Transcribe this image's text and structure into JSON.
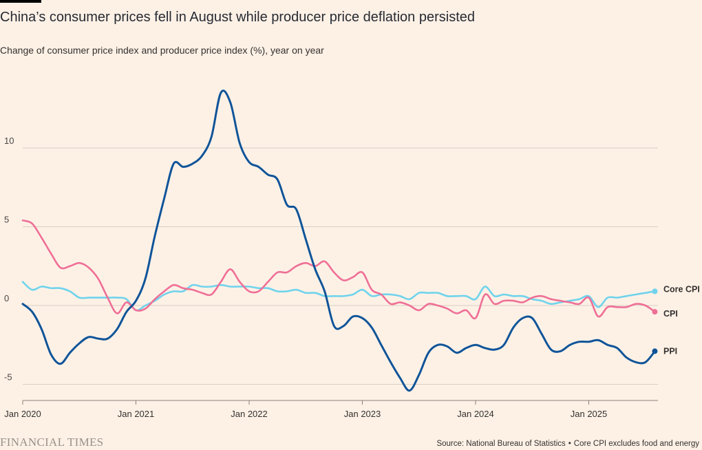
{
  "header": {
    "title": "China’s consumer prices fell in August while producer price deflation persisted",
    "subtitle": "Change of consumer price index and producer price index (%), year on year"
  },
  "footer": {
    "logo": "FINANCIAL TIMES",
    "source": "Source: National Bureau of Statistics",
    "separator": "•",
    "note": "Core CPI excludes food and energy"
  },
  "colors": {
    "background": "#fdf1e6",
    "grid": "#d8cdc3",
    "axis": "#8a8078",
    "ppi": "#0f5499",
    "cpi": "#ef6f96",
    "core_cpi": "#6fd3ec"
  },
  "chart_data": {
    "type": "line",
    "title": "China’s consumer prices fell in August while producer price deflation persisted",
    "subtitle": "Change of consumer price index and producer price index (%), year on year",
    "xlabel": "",
    "ylabel": "",
    "xlim": [
      "2020-01",
      "2025-08"
    ],
    "ylim": [
      -6,
      14
    ],
    "yticks": [
      -5,
      0,
      5,
      10
    ],
    "ytick_labels": [
      "-5",
      "0",
      "5",
      "10"
    ],
    "xtick_labels": [
      "Jan 2020",
      "Jan 2021",
      "Jan 2022",
      "Jan 2023",
      "Jan 2024",
      "Jan 2025"
    ],
    "grid": true,
    "legend": "direct labels at line ends (right)",
    "x": [
      "2020-01",
      "2020-02",
      "2020-03",
      "2020-04",
      "2020-05",
      "2020-06",
      "2020-07",
      "2020-08",
      "2020-09",
      "2020-10",
      "2020-11",
      "2020-12",
      "2021-01",
      "2021-02",
      "2021-03",
      "2021-04",
      "2021-05",
      "2021-06",
      "2021-07",
      "2021-08",
      "2021-09",
      "2021-10",
      "2021-11",
      "2021-12",
      "2022-01",
      "2022-02",
      "2022-03",
      "2022-04",
      "2022-05",
      "2022-06",
      "2022-07",
      "2022-08",
      "2022-09",
      "2022-10",
      "2022-11",
      "2022-12",
      "2023-01",
      "2023-02",
      "2023-03",
      "2023-04",
      "2023-05",
      "2023-06",
      "2023-07",
      "2023-08",
      "2023-09",
      "2023-10",
      "2023-11",
      "2023-12",
      "2024-01",
      "2024-02",
      "2024-03",
      "2024-04",
      "2024-05",
      "2024-06",
      "2024-07",
      "2024-08",
      "2024-09",
      "2024-10",
      "2024-11",
      "2024-12",
      "2025-01",
      "2025-02",
      "2025-03",
      "2025-04",
      "2025-05",
      "2025-06",
      "2025-07",
      "2025-08"
    ],
    "series": [
      {
        "name": "PPI",
        "color": "#0f5499",
        "values": [
          0.1,
          -0.4,
          -1.5,
          -3.1,
          -3.7,
          -3.0,
          -2.4,
          -2.0,
          -2.1,
          -2.1,
          -1.5,
          -0.4,
          0.3,
          1.7,
          4.4,
          6.8,
          9.0,
          8.8,
          9.0,
          9.5,
          10.7,
          13.5,
          12.9,
          10.3,
          9.1,
          8.8,
          8.3,
          8.0,
          6.4,
          6.1,
          4.2,
          2.3,
          0.9,
          -1.3,
          -1.3,
          -0.7,
          -0.8,
          -1.4,
          -2.5,
          -3.6,
          -4.6,
          -5.4,
          -4.4,
          -3.0,
          -2.5,
          -2.6,
          -3.0,
          -2.7,
          -2.5,
          -2.7,
          -2.8,
          -2.5,
          -1.4,
          -0.8,
          -0.8,
          -1.8,
          -2.8,
          -2.9,
          -2.5,
          -2.3,
          -2.3,
          -2.2,
          -2.5,
          -2.7,
          -3.3,
          -3.6,
          -3.6,
          -2.9
        ]
      },
      {
        "name": "CPI",
        "color": "#ef6f96",
        "values": [
          5.4,
          5.2,
          4.3,
          3.3,
          2.4,
          2.5,
          2.7,
          2.4,
          1.7,
          0.5,
          -0.5,
          0.2,
          -0.3,
          -0.2,
          0.4,
          0.9,
          1.3,
          1.1,
          1.0,
          0.8,
          0.7,
          1.5,
          2.3,
          1.5,
          0.9,
          0.9,
          1.5,
          2.1,
          2.1,
          2.5,
          2.7,
          2.5,
          2.8,
          2.1,
          1.6,
          1.8,
          2.1,
          1.0,
          0.7,
          0.1,
          0.2,
          0.0,
          -0.3,
          0.1,
          0.0,
          -0.2,
          -0.5,
          -0.3,
          -0.8,
          0.7,
          0.1,
          0.3,
          0.3,
          0.2,
          0.5,
          0.6,
          0.4,
          0.3,
          0.2,
          0.1,
          0.5,
          -0.7,
          -0.1,
          -0.1,
          -0.1,
          0.1,
          0.0,
          -0.4
        ]
      },
      {
        "name": "Core CPI",
        "color": "#6fd3ec",
        "values": [
          1.5,
          1.0,
          1.2,
          1.1,
          1.1,
          0.9,
          0.5,
          0.5,
          0.5,
          0.5,
          0.5,
          0.4,
          -0.3,
          0.0,
          0.3,
          0.7,
          0.9,
          0.9,
          1.3,
          1.2,
          1.2,
          1.3,
          1.2,
          1.2,
          1.2,
          1.1,
          1.1,
          0.9,
          0.9,
          1.0,
          0.8,
          0.8,
          0.6,
          0.6,
          0.6,
          0.7,
          1.0,
          0.6,
          0.7,
          0.7,
          0.6,
          0.4,
          0.8,
          0.8,
          0.8,
          0.6,
          0.6,
          0.6,
          0.4,
          1.2,
          0.6,
          0.7,
          0.6,
          0.6,
          0.4,
          0.3,
          0.1,
          0.2,
          0.3,
          0.4,
          0.6,
          -0.1,
          0.5,
          0.5,
          0.6,
          0.7,
          0.8,
          0.9
        ]
      }
    ]
  }
}
